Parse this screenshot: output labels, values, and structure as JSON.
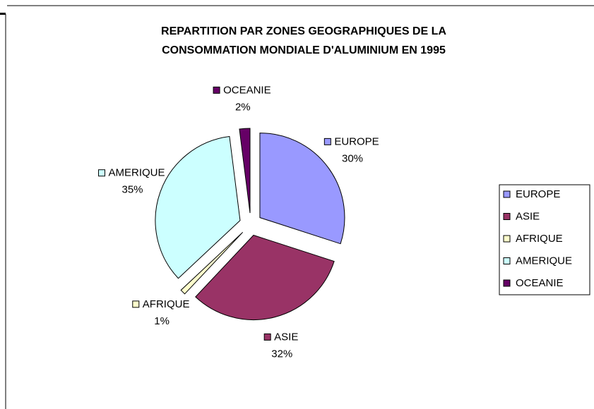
{
  "chart_data": {
    "type": "pie",
    "title": "REPARTITION PAR ZONES GEOGRAPHIQUES DE LA",
    "subtitle": "CONSOMMATION MONDIALE D'ALUMINIUM EN 1995",
    "categories": [
      "EUROPE",
      "ASIE",
      "AFRIQUE",
      "AMERIQUE",
      "OCEANIE"
    ],
    "values": [
      30,
      32,
      1,
      35,
      2
    ],
    "value_labels": [
      "30%",
      "32%",
      "1%",
      "35%",
      "2%"
    ],
    "colors": [
      "#9999ff",
      "#993366",
      "#ffffcc",
      "#ccffff",
      "#660066"
    ],
    "legend": "right"
  }
}
